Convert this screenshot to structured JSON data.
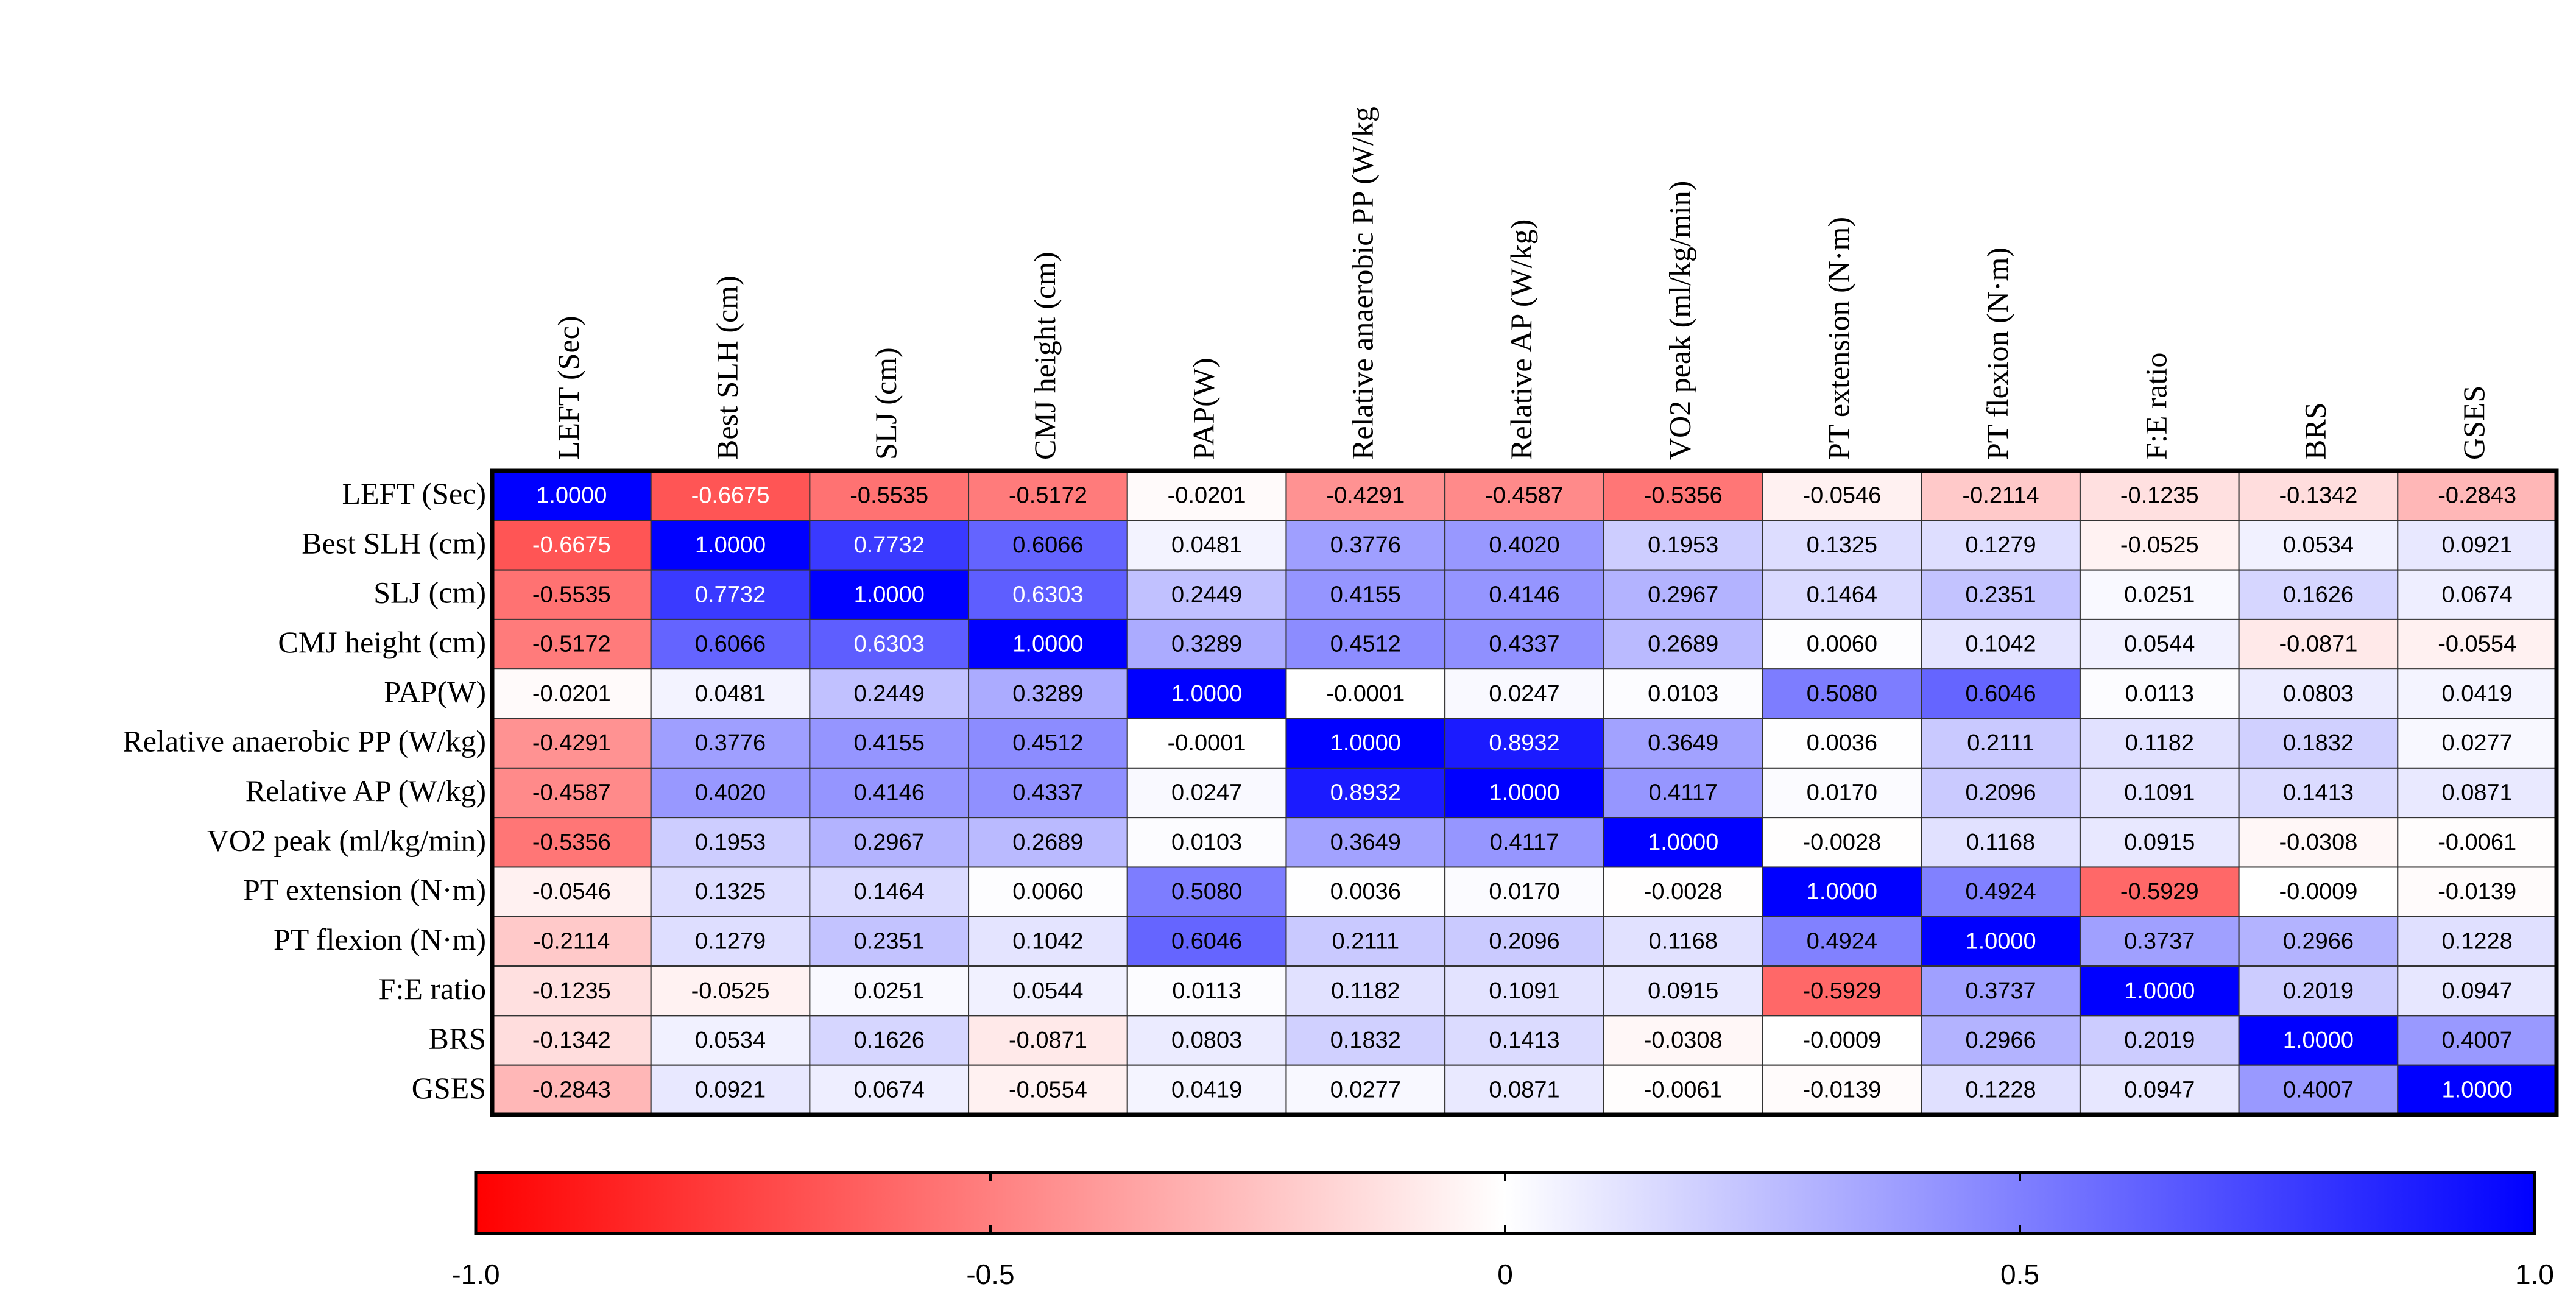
{
  "chart_data": {
    "type": "heatmap",
    "x_categories": [
      "LEFT (Sec)",
      "Best SLH (cm)",
      "SLJ (cm)",
      "CMJ height (cm)",
      "PAP(W)",
      "Relative anaerobic PP (W/kg",
      "Relative AP (W/kg)",
      "VO2 peak (ml/kg/min)",
      "PT extension (N·m)",
      "PT flexion (N·m)",
      "F:E ratio",
      "BRS",
      "GSES"
    ],
    "y_categories": [
      "LEFT (Sec)",
      "Best SLH (cm)",
      "SLJ (cm)",
      "CMJ height (cm)",
      "PAP(W)",
      "Relative anaerobic PP (W/kg)",
      "Relative AP (W/kg)",
      "VO2 peak (ml/kg/min)",
      "PT extension (N·m)",
      "PT flexion (N·m)",
      "F:E ratio",
      "BRS",
      "GSES"
    ],
    "values": [
      [
        1,
        -0.6675,
        -0.5535,
        -0.5172,
        -0.0201,
        -0.4291,
        -0.4587,
        -0.5356,
        -0.0546,
        -0.2114,
        -0.1235,
        -0.1342,
        -0.2843
      ],
      [
        -0.6675,
        1,
        0.7732,
        0.6066,
        0.0481,
        0.3776,
        0.402,
        0.1953,
        0.1325,
        0.1279,
        -0.0525,
        0.0534,
        0.0921
      ],
      [
        -0.5535,
        0.7732,
        1,
        0.6303,
        0.2449,
        0.4155,
        0.4146,
        0.2967,
        0.1464,
        0.2351,
        0.0251,
        0.1626,
        0.0674
      ],
      [
        -0.5172,
        0.6066,
        0.6303,
        1,
        0.3289,
        0.4512,
        0.4337,
        0.2689,
        0.006,
        0.1042,
        0.0544,
        -0.0871,
        -0.0554
      ],
      [
        -0.0201,
        0.0481,
        0.2449,
        0.3289,
        1,
        -0.0001,
        0.0247,
        0.0103,
        0.508,
        0.6046,
        0.0113,
        0.0803,
        0.0419
      ],
      [
        -0.4291,
        0.3776,
        0.4155,
        0.4512,
        -0.0001,
        1,
        0.8932,
        0.3649,
        0.0036,
        0.2111,
        0.1182,
        0.1832,
        0.0277
      ],
      [
        -0.4587,
        0.402,
        0.4146,
        0.4337,
        0.0247,
        0.8932,
        1,
        0.4117,
        0.017,
        0.2096,
        0.1091,
        0.1413,
        0.0871
      ],
      [
        -0.5356,
        0.1953,
        0.2967,
        0.2689,
        0.0103,
        0.3649,
        0.4117,
        1,
        -0.0028,
        0.1168,
        0.0915,
        -0.0308,
        -0.0061
      ],
      [
        -0.0546,
        0.1325,
        0.1464,
        0.006,
        0.508,
        0.0036,
        0.017,
        -0.0028,
        1,
        0.4924,
        -0.5929,
        -0.0009,
        -0.0139
      ],
      [
        -0.2114,
        0.1279,
        0.2351,
        0.1042,
        0.6046,
        0.2111,
        0.2096,
        0.1168,
        0.4924,
        1,
        0.3737,
        0.2966,
        0.1228
      ],
      [
        -0.1235,
        -0.0525,
        0.0251,
        0.0544,
        0.0113,
        0.1182,
        0.1091,
        0.0915,
        -0.5929,
        0.3737,
        1,
        0.2019,
        0.0947
      ],
      [
        -0.1342,
        0.0534,
        0.1626,
        -0.0871,
        0.0803,
        0.1832,
        0.1413,
        -0.0308,
        -0.0009,
        0.2966,
        0.2019,
        1,
        0.4007
      ],
      [
        -0.2843,
        0.0921,
        0.0674,
        -0.0554,
        0.0419,
        0.0277,
        0.0871,
        -0.0061,
        -0.0139,
        0.1228,
        0.0947,
        0.4007,
        1
      ]
    ],
    "value_labels": [
      [
        "1.0000",
        "-0.6675",
        "-0.5535",
        "-0.5172",
        "-0.0201",
        "-0.4291",
        "-0.4587",
        "-0.5356",
        "-0.0546",
        "-0.2114",
        "-0.1235",
        "-0.1342",
        "-0.2843"
      ],
      [
        "-0.6675",
        "1.0000",
        "0.7732",
        "0.6066",
        "0.0481",
        "0.3776",
        "0.4020",
        "0.1953",
        "0.1325",
        "0.1279",
        "-0.0525",
        "0.0534",
        "0.0921"
      ],
      [
        "-0.5535",
        "0.7732",
        "1.0000",
        "0.6303",
        "0.2449",
        "0.4155",
        "0.4146",
        "0.2967",
        "0.1464",
        "0.2351",
        "0.0251",
        "0.1626",
        "0.0674"
      ],
      [
        "-0.5172",
        "0.6066",
        "0.6303",
        "1.0000",
        "0.3289",
        "0.4512",
        "0.4337",
        "0.2689",
        "0.0060",
        "0.1042",
        "0.0544",
        "-0.0871",
        "-0.0554"
      ],
      [
        "-0.0201",
        "0.0481",
        "0.2449",
        "0.3289",
        "1.0000",
        "-0.0001",
        "0.0247",
        "0.0103",
        "0.5080",
        "0.6046",
        "0.0113",
        "0.0803",
        "0.0419"
      ],
      [
        "-0.4291",
        "0.3776",
        "0.4155",
        "0.4512",
        "-0.0001",
        "1.0000",
        "0.8932",
        "0.3649",
        "0.0036",
        "0.2111",
        "0.1182",
        "0.1832",
        "0.0277"
      ],
      [
        "-0.4587",
        "0.4020",
        "0.4146",
        "0.4337",
        "0.0247",
        "0.8932",
        "1.0000",
        "0.4117",
        "0.0170",
        "0.2096",
        "0.1091",
        "0.1413",
        "0.0871"
      ],
      [
        "-0.5356",
        "0.1953",
        "0.2967",
        "0.2689",
        "0.0103",
        "0.3649",
        "0.4117",
        "1.0000",
        "-0.0028",
        "0.1168",
        "0.0915",
        "-0.0308",
        "-0.0061"
      ],
      [
        "-0.0546",
        "0.1325",
        "0.1464",
        "0.0060",
        "0.5080",
        "0.0036",
        "0.0170",
        "-0.0028",
        "1.0000",
        "0.4924",
        "-0.5929",
        "-0.0009",
        "-0.0139"
      ],
      [
        "-0.2114",
        "0.1279",
        "0.2351",
        "0.1042",
        "0.6046",
        "0.2111",
        "0.2096",
        "0.1168",
        "0.4924",
        "1.0000",
        "0.3737",
        "0.2966",
        "0.1228"
      ],
      [
        "-0.1235",
        "-0.0525",
        "0.0251",
        "0.0544",
        "0.0113",
        "0.1182",
        "0.1091",
        "0.0915",
        "-0.5929",
        "0.3737",
        "1.0000",
        "0.2019",
        "0.0947"
      ],
      [
        "-0.1342",
        "0.0534",
        "0.1626",
        "-0.0871",
        "0.0803",
        "0.1832",
        "0.1413",
        "-0.0308",
        "-0.0009",
        "0.2966",
        "0.2019",
        "1.0000",
        "0.4007"
      ],
      [
        "-0.2843",
        "0.0921",
        "0.0674",
        "-0.0554",
        "0.0419",
        "0.0277",
        "0.0871",
        "-0.0061",
        "-0.0139",
        "0.1228",
        "0.0947",
        "0.4007",
        "1.0000"
      ]
    ],
    "colormap": [
      "#ff0000",
      "#ffffff",
      "#0000ff"
    ],
    "clim": [
      -1,
      1
    ],
    "cticks": [
      {
        "value": -1,
        "label": "-1.0"
      },
      -0.5,
      0,
      0.5,
      {
        "value": 1,
        "label": "1.0"
      }
    ]
  }
}
